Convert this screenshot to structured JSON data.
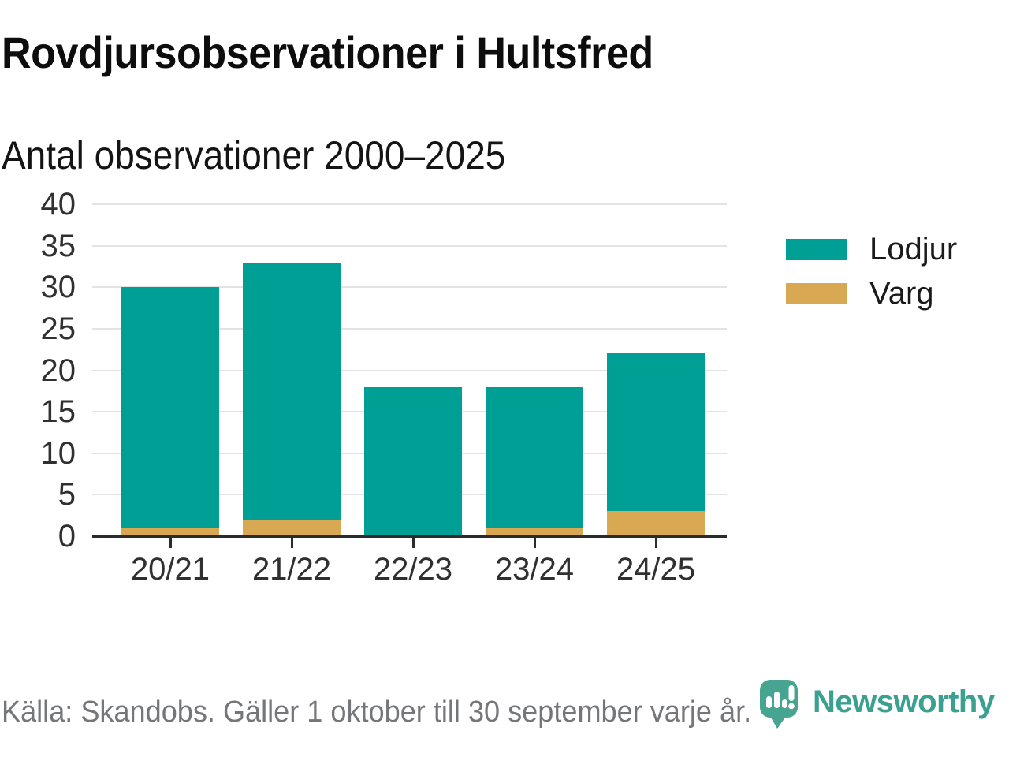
{
  "header": {
    "title": "Rovdjursobservationer i Hultsfred",
    "subtitle": "Antal observationer 2000–2025"
  },
  "legend": {
    "items": [
      {
        "label": "Lodjur",
        "color": "#009f96"
      },
      {
        "label": "Varg",
        "color": "#d9a853"
      }
    ]
  },
  "chart_data": {
    "type": "bar",
    "stacked": true,
    "title": "Rovdjursobservationer i Hultsfred",
    "subtitle": "Antal observationer 2000–2025",
    "categories": [
      "20/21",
      "21/22",
      "22/23",
      "23/24",
      "24/25"
    ],
    "series": [
      {
        "name": "Lodjur",
        "color": "#009f96",
        "values": [
          29,
          31,
          18,
          17,
          19
        ]
      },
      {
        "name": "Varg",
        "color": "#d9a853",
        "values": [
          1,
          2,
          0,
          1,
          3
        ]
      }
    ],
    "stack_totals": [
      30,
      33,
      18,
      18,
      22
    ],
    "xlabel": "",
    "ylabel": "",
    "ylim": [
      0,
      40
    ],
    "yticks": [
      0,
      5,
      10,
      15,
      20,
      25,
      30,
      35,
      40
    ],
    "grid": "horizontal",
    "legend_position": "right"
  },
  "footer": {
    "source": "Källa: Skandobs. Gäller 1 oktober till 30 september varje år.",
    "brand": "Newsworthy"
  },
  "colors": {
    "lodjur": "#009f96",
    "varg": "#d9a853",
    "axis_line": "#2b2b2b",
    "gridline": "#e3e3e3",
    "axis_text": "#303030",
    "footer_text": "#75767a",
    "logo_bubble": "#47a491",
    "logo_text": "#3aa08f"
  }
}
